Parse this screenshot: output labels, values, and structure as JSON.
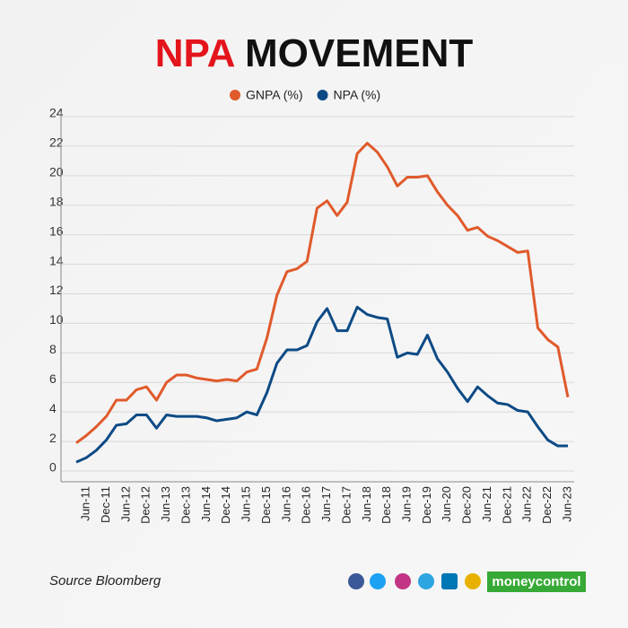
{
  "chart_data": {
    "type": "line",
    "title": [
      "NPA",
      "MOVEMENT"
    ],
    "categories": [
      null,
      "Jun-11",
      null,
      "Dec-11",
      null,
      "Jun-12",
      null,
      "Dec-12",
      null,
      "Jun-13",
      null,
      "Dec-13",
      null,
      "Jun-14",
      null,
      "Dec-14",
      null,
      "Jun-15",
      null,
      "Dec-15",
      null,
      "Jun-16",
      null,
      "Dec-16",
      null,
      "Jun-17",
      null,
      "Dec-17",
      null,
      "Jun-18",
      null,
      "Dec-18",
      null,
      "Jun-19",
      null,
      "Dec-19",
      null,
      "Jun-20",
      null,
      "Dec-20",
      null,
      "Jun-21",
      null,
      "Dec-21",
      null,
      "Jun-22",
      null,
      "Dec-22",
      null,
      "Jun-23"
    ],
    "series": [
      {
        "name": "GNPA (%)",
        "color": "#e05a2b",
        "values": [
          1.9,
          2.4,
          3.0,
          3.7,
          4.8,
          4.8,
          5.5,
          5.7,
          4.8,
          6.0,
          6.5,
          6.5,
          6.3,
          6.2,
          6.1,
          6.2,
          6.1,
          6.7,
          6.9,
          9.0,
          11.9,
          13.5,
          13.7,
          14.2,
          17.8,
          18.3,
          17.3,
          18.2,
          21.5,
          22.2,
          21.6,
          20.6,
          19.3,
          19.9,
          19.9,
          20.0,
          18.9,
          18.0,
          17.3,
          16.3,
          16.5,
          15.9,
          15.6,
          15.2,
          14.8,
          14.9,
          9.7,
          8.9,
          8.4,
          5.0
        ]
      },
      {
        "name": "NPA (%)",
        "color": "#0d4a85",
        "values": [
          0.6,
          0.9,
          1.4,
          2.1,
          3.1,
          3.2,
          3.8,
          3.8,
          2.9,
          3.8,
          3.7,
          3.7,
          3.7,
          3.6,
          3.4,
          3.5,
          3.6,
          4.0,
          3.8,
          5.3,
          7.3,
          8.2,
          8.2,
          8.5,
          10.1,
          11.0,
          9.5,
          9.5,
          11.1,
          10.6,
          10.4,
          10.3,
          7.7,
          8.0,
          7.9,
          9.2,
          7.6,
          6.7,
          5.6,
          4.7,
          5.7,
          5.1,
          4.6,
          4.5,
          4.1,
          4.0,
          3.0,
          2.1,
          1.7,
          1.7
        ]
      }
    ],
    "ylim": [
      0,
      24
    ],
    "yticks": [
      0,
      2,
      4,
      6,
      8,
      10,
      12,
      14,
      16,
      18,
      20,
      22,
      24
    ],
    "grid": true,
    "source": "Source Bloomberg",
    "brand": "moneycontrol"
  }
}
